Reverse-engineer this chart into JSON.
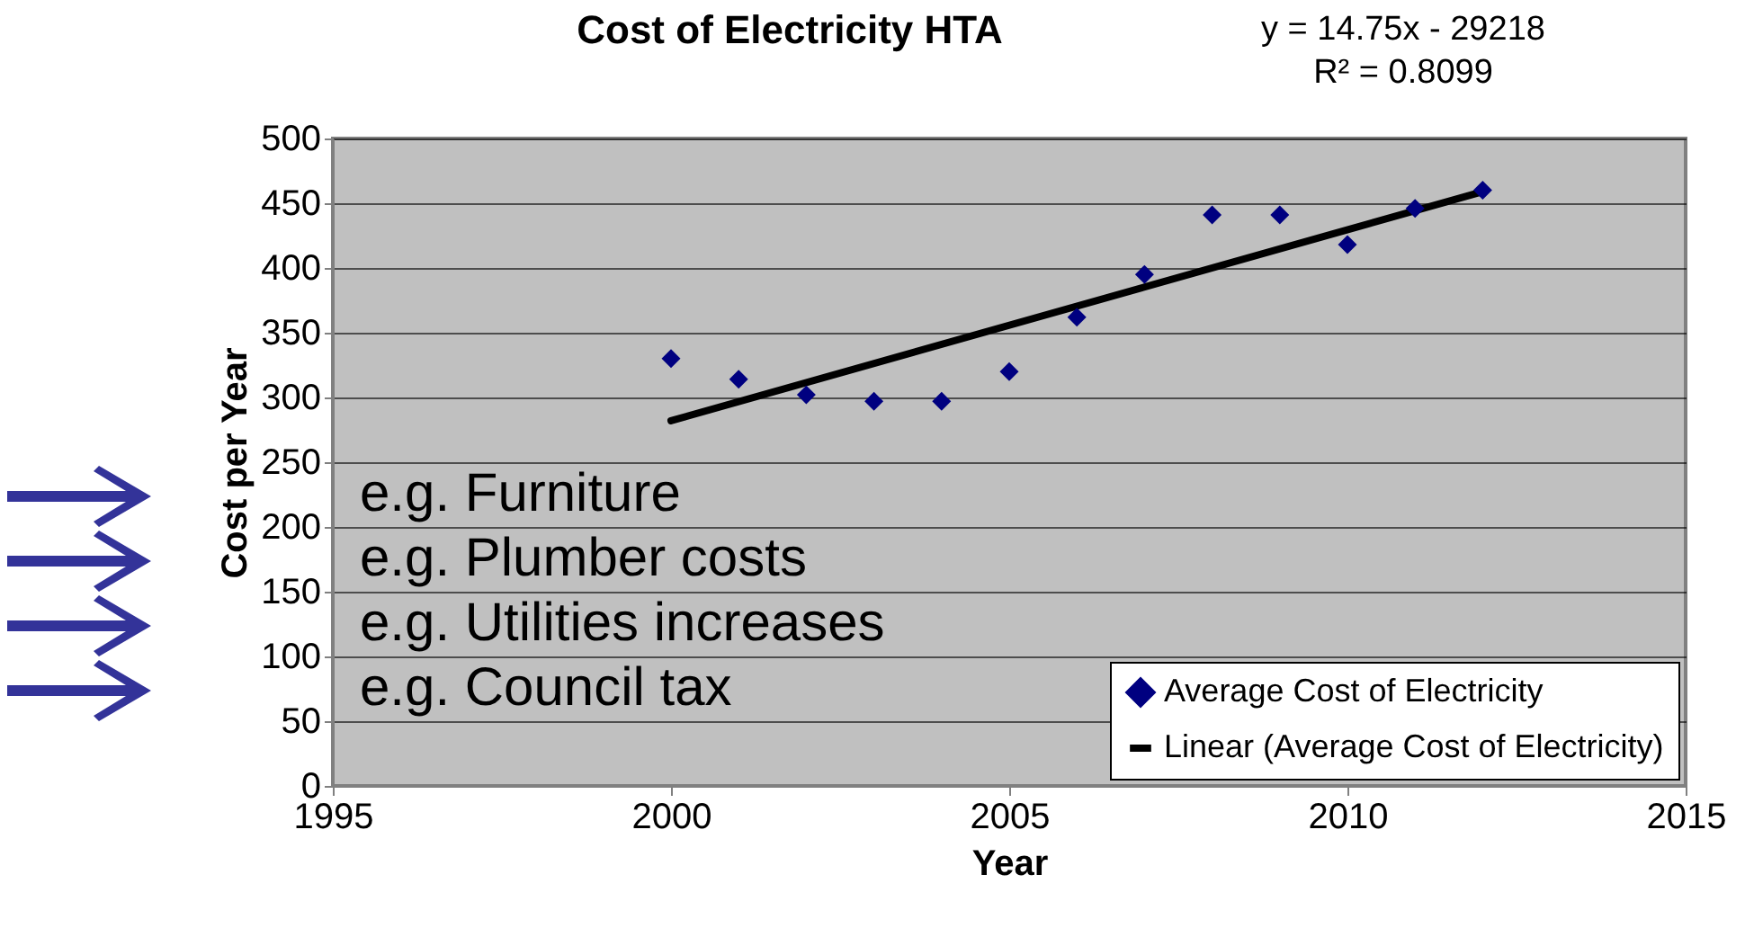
{
  "chart_data": {
    "type": "scatter",
    "title": "Cost of Electricity HTA",
    "xlabel": "Year",
    "ylabel": "Cost per Year",
    "annotations": [
      "y = 14.75x - 29218",
      "R² = 0.8099",
      "e.g. Furniture",
      "e.g. Plumber costs",
      "e.g. Utilities increases",
      "e.g. Council tax"
    ],
    "series": [
      {
        "name": "Average Cost of Electricity",
        "color": "#000080",
        "marker": "diamond",
        "x": [
          2000,
          2001,
          2002,
          2003,
          2004,
          2005,
          2006,
          2007,
          2008,
          2009,
          2010,
          2011,
          2012
        ],
        "values": [
          330,
          314,
          302,
          297,
          297,
          320,
          362,
          395,
          441,
          441,
          418,
          446,
          460
        ]
      },
      {
        "name": "Linear (Average Cost of Electricity)",
        "type": "line",
        "line_style": "solid",
        "color": "#000000",
        "x": [
          2000,
          2012
        ],
        "values": [
          282,
          459
        ]
      }
    ],
    "xlim": [
      1995,
      2015
    ],
    "xticks": [
      1995,
      2000,
      2005,
      2010,
      2015
    ],
    "ylim": [
      0,
      500
    ],
    "yticks": [
      0,
      50,
      100,
      150,
      200,
      250,
      300,
      350,
      400,
      450,
      500
    ],
    "grid": "y",
    "legend": "bottom right"
  }
}
